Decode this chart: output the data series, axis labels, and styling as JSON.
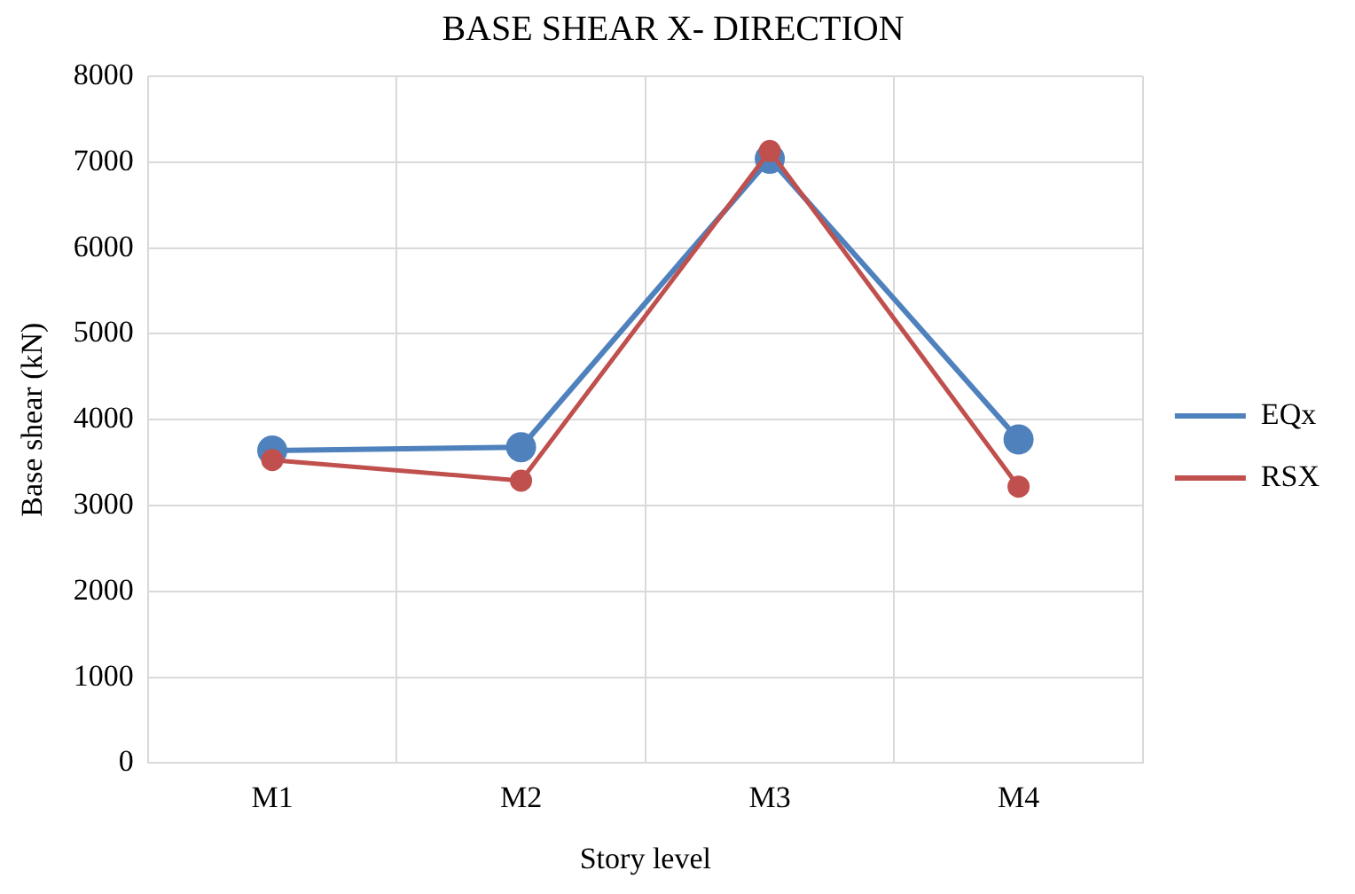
{
  "chart_data": {
    "type": "line",
    "title": "BASE SHEAR X- DIRECTION",
    "xlabel": "Story level",
    "ylabel": "Base shear (kN)",
    "categories": [
      "M1",
      "M2",
      "M3",
      "M4"
    ],
    "series": [
      {
        "name": "EQx",
        "color": "#4f81bd",
        "values": [
          3640,
          3680,
          7040,
          3770
        ]
      },
      {
        "name": "RSX",
        "color": "#c0504d",
        "values": [
          3530,
          3290,
          7130,
          3220
        ]
      }
    ],
    "ylim": [
      0,
      8000
    ],
    "yticks": [
      0,
      1000,
      2000,
      3000,
      4000,
      5000,
      6000,
      7000,
      8000
    ],
    "grid": true,
    "legend": "right",
    "marker": "circle",
    "line_style": "solid"
  }
}
